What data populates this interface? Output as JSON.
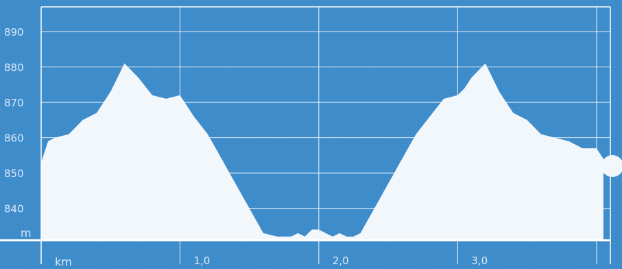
{
  "chart_data": {
    "type": "area",
    "title": "",
    "xlabel": "km",
    "ylabel": "m",
    "xlim": [
      0,
      4.1
    ],
    "ylim": [
      831,
      897
    ],
    "x_ticks": [
      1.0,
      2.0,
      3.0
    ],
    "x_tick_labels": [
      "1,0",
      "2,0",
      "3,0"
    ],
    "y_ticks": [
      890,
      880,
      870,
      860,
      850,
      840
    ],
    "y_tick_labels": [
      "890",
      "880",
      "870",
      "860",
      "850",
      "840"
    ],
    "grid": true,
    "legend": "none",
    "colors": {
      "background": "#3f8ccb",
      "fill": "#f2f7fb",
      "grid": "#ffffff",
      "text": "#dbeafa"
    },
    "series": [
      {
        "x": [
          0.0,
          0.05,
          0.1,
          0.2,
          0.3,
          0.4,
          0.5,
          0.6,
          0.7,
          0.8,
          0.9,
          1.0,
          1.05,
          1.1,
          1.2,
          1.3,
          1.4,
          1.5,
          1.6,
          1.7,
          1.8,
          1.85,
          1.9,
          1.95,
          2.0,
          2.05,
          2.1,
          2.15,
          2.2,
          2.25,
          2.3,
          2.4,
          2.5,
          2.6,
          2.7,
          2.8,
          2.9,
          3.0,
          3.05,
          3.1,
          3.2,
          3.3,
          3.4,
          3.5,
          3.6,
          3.7,
          3.8,
          3.9,
          4.0,
          4.05
        ],
        "y": [
          853,
          859,
          860,
          861,
          865,
          867,
          873,
          881,
          877,
          872,
          871,
          872,
          869,
          866,
          861,
          854,
          847,
          840,
          833,
          832,
          832,
          833,
          832,
          834,
          834,
          833,
          832,
          833,
          832,
          832,
          833,
          840,
          847,
          854,
          861,
          866,
          871,
          872,
          874,
          877,
          881,
          873,
          867,
          865,
          861,
          860,
          859,
          857,
          857,
          854
        ]
      }
    ]
  }
}
